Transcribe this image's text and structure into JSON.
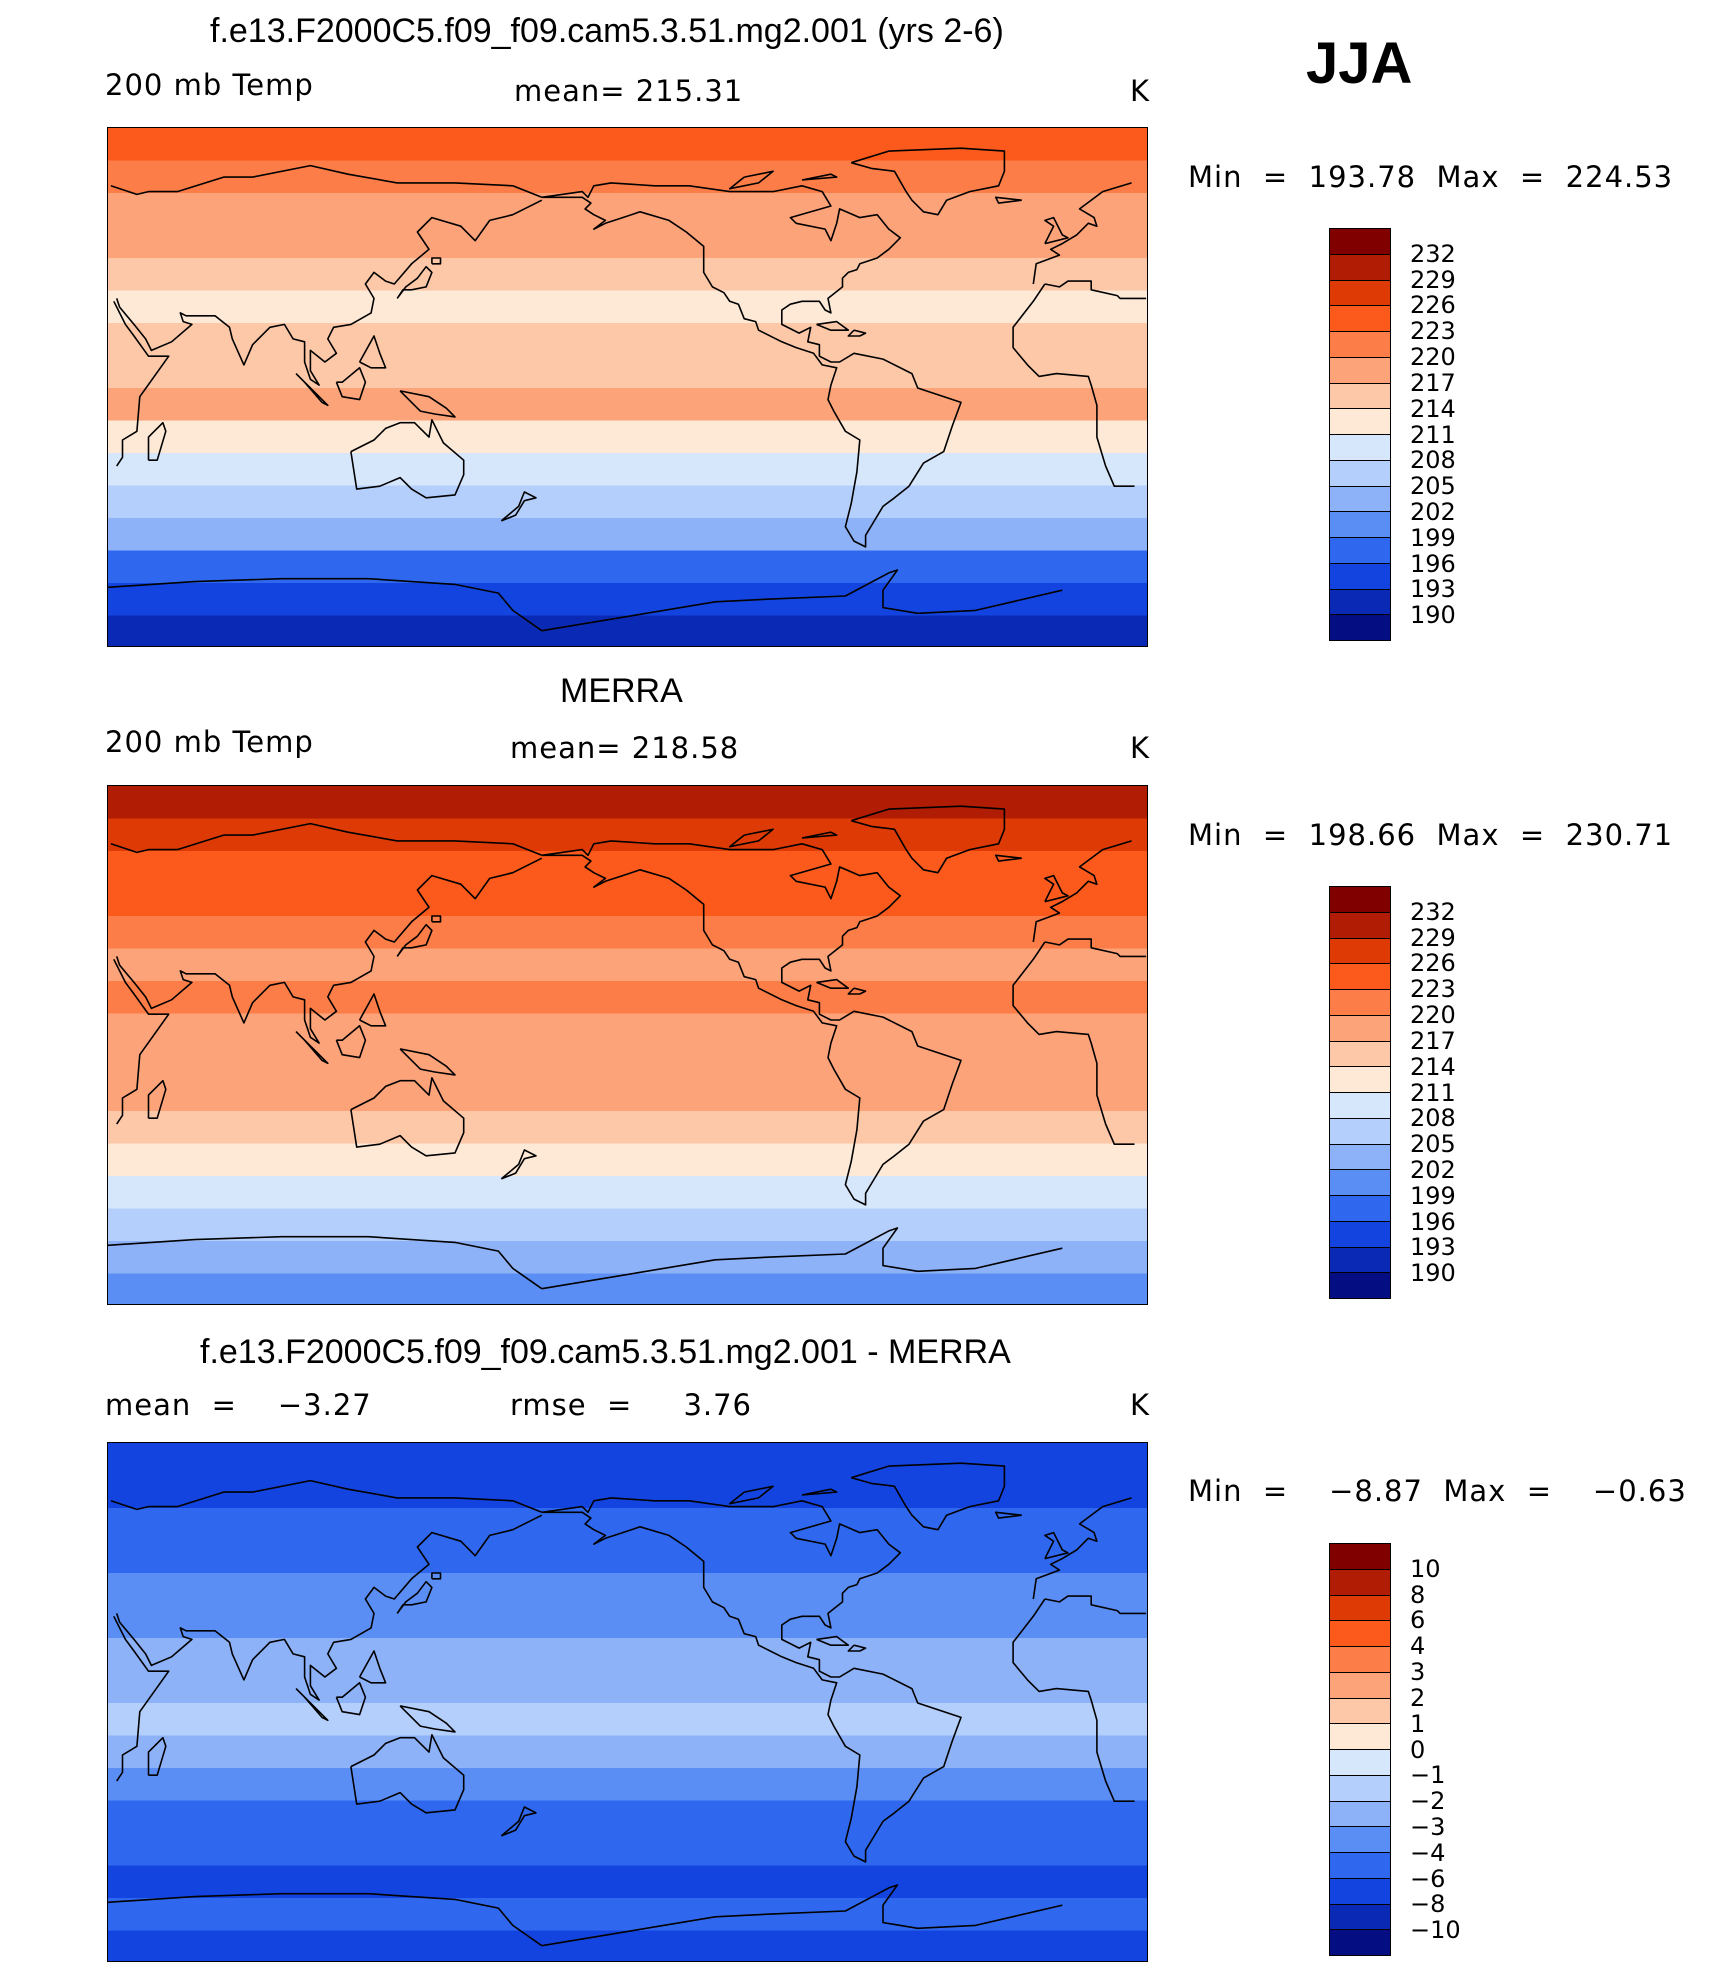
{
  "season": "JJA",
  "colors": {
    "model_and_obs_scale": [
      "#800000",
      "#b01c04",
      "#de3a05",
      "#fb5a1c",
      "#fc7d47",
      "#fda37a",
      "#fdc8a8",
      "#fde9d6",
      "#d7e7fb",
      "#b4cffb",
      "#8db2f8",
      "#5b8ef5",
      "#2f68ef",
      "#1444e0",
      "#0a2ab5",
      "#040e82"
    ],
    "diff_scale": [
      "#800000",
      "#b01c04",
      "#de3a05",
      "#fb5a1c",
      "#fc7d47",
      "#fda37a",
      "#fdc8a8",
      "#fde9d6",
      "#d7e7fb",
      "#b4cffb",
      "#8db2f8",
      "#5b8ef5",
      "#2f68ef",
      "#1444e0",
      "#0a2ab5",
      "#040e82"
    ]
  },
  "panels": [
    {
      "title": "f.e13.F2000C5.f09_f09.cam5.3.51.mg2.001 (yrs 2-6)",
      "left_label": "200 mb Temp",
      "center_label": "mean= 215.31",
      "units": "K",
      "minmax": "Min  =  193.78  Max  =  224.53",
      "ticks": [
        "232",
        "229",
        "226",
        "223",
        "220",
        "217",
        "214",
        "211",
        "208",
        "205",
        "202",
        "199",
        "196",
        "193",
        "190"
      ],
      "bands": [
        3,
        4,
        5,
        5,
        6,
        7,
        6,
        6,
        5,
        7,
        8,
        9,
        10,
        12,
        13,
        14
      ]
    },
    {
      "title": "MERRA",
      "left_label": "200 mb Temp",
      "center_label": "mean= 218.58",
      "units": "K",
      "minmax": "Min  =  198.66  Max  =  230.71",
      "ticks": [
        "232",
        "229",
        "226",
        "223",
        "220",
        "217",
        "214",
        "211",
        "208",
        "205",
        "202",
        "199",
        "196",
        "193",
        "190"
      ],
      "bands": [
        1,
        2,
        3,
        3,
        4,
        5,
        4,
        5,
        5,
        5,
        6,
        7,
        8,
        9,
        10,
        11
      ]
    },
    {
      "title": "f.e13.F2000C5.f09_f09.cam5.3.51.mg2.001 - MERRA",
      "left_label": "mean  =    −3.27",
      "center_label": "rmse  =     3.76",
      "units": "K",
      "minmax": "Min  =    −8.87  Max  =    −0.63",
      "ticks": [
        "10",
        "8",
        "6",
        "4",
        "3",
        "2",
        "1",
        "0",
        "−1",
        "−2",
        "−3",
        "−4",
        "−6",
        "−8",
        "−10"
      ],
      "bands": [
        13,
        13,
        12,
        12,
        11,
        11,
        10,
        10,
        9,
        10,
        11,
        12,
        12,
        13,
        12,
        13
      ]
    }
  ]
}
